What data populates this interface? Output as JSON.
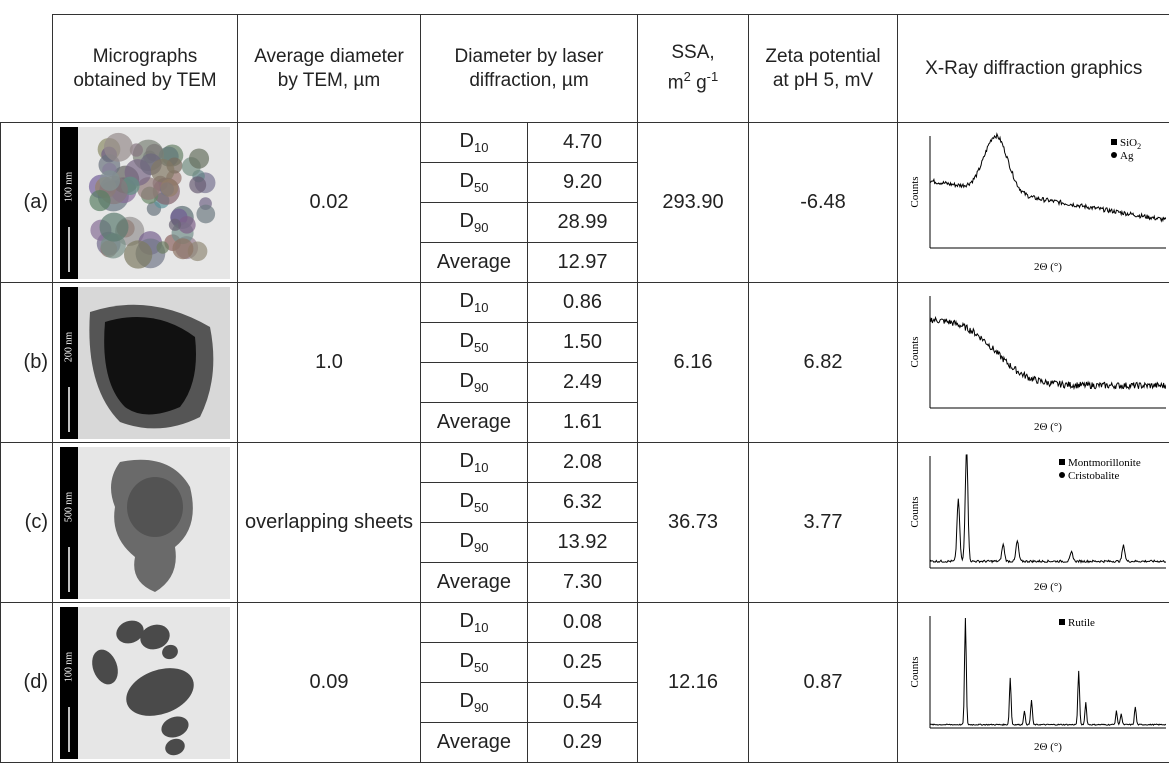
{
  "header": {
    "tem": "Micrographs obtained by TEM",
    "avg": "Average diameter by TEM, µm",
    "diameter": "Diameter by laser diffraction, µm",
    "ssa": {
      "text": "SSA,",
      "unit": "m",
      "exp1": "2",
      "unit2": "g",
      "exp2": "-1"
    },
    "zeta": "Zeta potential at pH 5, mV",
    "xrd": "X-Ray diffraction graphics"
  },
  "rows": [
    {
      "label": "(a)",
      "scale": "100 nm",
      "tem": "0.02",
      "ssa": "293.90",
      "zeta": "-6.48",
      "diameters": [
        {
          "base": "D",
          "sub": "10",
          "value": "4.70"
        },
        {
          "base": "D",
          "sub": "50",
          "value": "9.20"
        },
        {
          "base": "D",
          "sub": "90",
          "value": "28.99"
        },
        {
          "base": "Average",
          "value": "12.97"
        }
      ],
      "xrd": {
        "y_label": "Counts",
        "x_label": "2Θ (°)",
        "legend": [
          {
            "text": "SiO",
            "sub": "2"
          },
          {
            "text": "Ag"
          }
        ]
      }
    },
    {
      "label": "(b)",
      "scale": "200 nm",
      "tem": "1.0",
      "ssa": "6.16",
      "zeta": "6.82",
      "diameters": [
        {
          "base": "D",
          "sub": "10",
          "value": "0.86"
        },
        {
          "base": "D",
          "sub": "50",
          "value": "1.50"
        },
        {
          "base": "D",
          "sub": "90",
          "value": "2.49"
        },
        {
          "base": "Average",
          "value": "1.61"
        }
      ],
      "xrd": {
        "y_label": "Counts",
        "x_label": "2Θ (°)",
        "legend": []
      }
    },
    {
      "label": "(c)",
      "scale": "500 nm",
      "tem": "overlapping sheets",
      "ssa": "36.73",
      "zeta": "3.77",
      "diameters": [
        {
          "base": "D",
          "sub": "10",
          "value": "2.08"
        },
        {
          "base": "D",
          "sub": "50",
          "value": "6.32"
        },
        {
          "base": "D",
          "sub": "90",
          "value": "13.92"
        },
        {
          "base": "Average",
          "value": "7.30"
        }
      ],
      "xrd": {
        "y_label": "Counts",
        "x_label": "2Θ (°)",
        "legend": [
          {
            "text": "Montmorillonite"
          },
          {
            "text": "Cristobalite"
          }
        ]
      }
    },
    {
      "label": "(d)",
      "scale": "100 nm",
      "tem": "0.09",
      "ssa": "12.16",
      "zeta": "0.87",
      "diameters": [
        {
          "base": "D",
          "sub": "10",
          "value": "0.08"
        },
        {
          "base": "D",
          "sub": "50",
          "value": "0.25"
        },
        {
          "base": "D",
          "sub": "90",
          "value": "0.54"
        },
        {
          "base": "Average",
          "value": "0.29"
        }
      ],
      "xrd": {
        "y_label": "Counts",
        "x_label": "2Θ (°)",
        "legend": [
          {
            "text": "Rutile"
          }
        ]
      }
    }
  ]
}
